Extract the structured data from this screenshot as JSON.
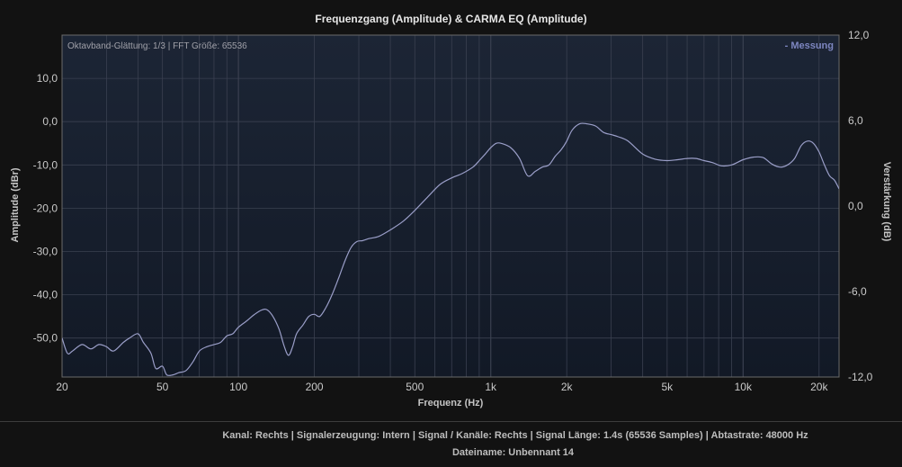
{
  "chart": {
    "title": "Frequenzgang (Amplitude) & CARMA EQ (Amplitude)",
    "annotation": "Oktavband-Glättung: 1/3 | FFT Größe: 65536",
    "legend_label": "- Messung",
    "xlabel": "Frequenz (Hz)",
    "ylabel_left": "Amplitude (dBr)",
    "ylabel_right": "Verstärkung (dB)"
  },
  "footer": {
    "info": "Kanal: Rechts  |  Signalerzeugung: Intern  |  Signal / Kanäle: Rechts  |  Signal Länge: 1.4s (65536 Samples)  |  Abtastrate: 48000 Hz",
    "filename": "Dateiname: Unbennant 14"
  },
  "colors": {
    "background": "#121212",
    "plot_background_top": "#1c2535",
    "plot_background_bottom": "#121926",
    "grid": "#3a4050",
    "series": "#9a9ec8",
    "legend": "#7d86c0"
  },
  "chart_data": {
    "type": "line",
    "x_scale": "log",
    "xlim": [
      20,
      24000
    ],
    "ylim": [
      -59,
      20
    ],
    "ylim_right": [
      -12,
      12
    ],
    "x_ticks": [
      20,
      50,
      100,
      200,
      500,
      1000,
      2000,
      5000,
      10000,
      20000
    ],
    "x_tick_labels": [
      "20",
      "50",
      "100",
      "200",
      "500",
      "1k",
      "2k",
      "5k",
      "10k",
      "20k"
    ],
    "y_ticks": [
      10,
      0,
      -10,
      -20,
      -30,
      -40,
      -50
    ],
    "y_tick_labels": [
      "10,0",
      "0,0",
      "-10,0",
      "-20,0",
      "-30,0",
      "-40,0",
      "-50,0"
    ],
    "y_right_ticks": [
      12,
      6,
      0,
      -6,
      -12
    ],
    "y_right_tick_labels": [
      "12,0",
      "6,0",
      "0,0",
      "-6,0",
      "-12,0"
    ],
    "grid": true,
    "legend_position": "top-right",
    "series": [
      {
        "name": "Messung",
        "x": [
          20,
          21,
          22,
          24,
          26,
          28,
          30,
          32,
          35,
          37,
          40,
          42,
          45,
          47,
          50,
          52,
          55,
          58,
          62,
          66,
          70,
          75,
          80,
          85,
          90,
          95,
          100,
          108,
          116,
          124,
          130,
          137,
          145,
          152,
          158,
          164,
          170,
          180,
          190,
          200,
          210,
          222,
          235,
          250,
          265,
          280,
          295,
          310,
          330,
          360,
          400,
          450,
          500,
          560,
          630,
          700,
          770,
          850,
          900,
          950,
          1000,
          1050,
          1100,
          1200,
          1300,
          1400,
          1500,
          1600,
          1700,
          1800,
          1900,
          2000,
          2100,
          2250,
          2400,
          2600,
          2800,
          3000,
          3200,
          3500,
          4000,
          4500,
          5000,
          5500,
          6000,
          6500,
          7000,
          7600,
          8200,
          9000,
          10000,
          11000,
          12000,
          13000,
          14000,
          15000,
          16000,
          17000,
          18000,
          19000,
          20000,
          21000,
          22000,
          23000,
          24000
        ],
        "y": [
          -50,
          -53.5,
          -53,
          -51.5,
          -52.5,
          -51.5,
          -52,
          -53,
          -51,
          -50,
          -49,
          -51,
          -53.5,
          -57,
          -56.5,
          -58.5,
          -58.5,
          -58,
          -57.5,
          -55.5,
          -53,
          -52,
          -51.5,
          -51,
          -49.5,
          -49,
          -47.5,
          -46,
          -44.5,
          -43.5,
          -43.5,
          -45,
          -48,
          -52,
          -54,
          -52,
          -49,
          -47,
          -45,
          -44.5,
          -45,
          -43,
          -40,
          -36,
          -32,
          -29,
          -27.7,
          -27.5,
          -27,
          -26.5,
          -25,
          -23,
          -20.5,
          -17.5,
          -14.5,
          -13,
          -12,
          -10.5,
          -9,
          -7.5,
          -6,
          -5,
          -5,
          -6,
          -8.5,
          -12.5,
          -11.5,
          -10.5,
          -10,
          -8,
          -6.5,
          -4.5,
          -2,
          -0.5,
          -0.5,
          -1,
          -2.5,
          -3,
          -3.5,
          -4.5,
          -7.5,
          -8.7,
          -9,
          -8.8,
          -8.5,
          -8.5,
          -9,
          -9.5,
          -10.2,
          -10,
          -8.8,
          -8.2,
          -8.3,
          -9.8,
          -10.5,
          -10,
          -8.5,
          -5.5,
          -4.5,
          -5,
          -7,
          -10,
          -12.5,
          -13.5,
          -15.5
        ]
      }
    ]
  }
}
